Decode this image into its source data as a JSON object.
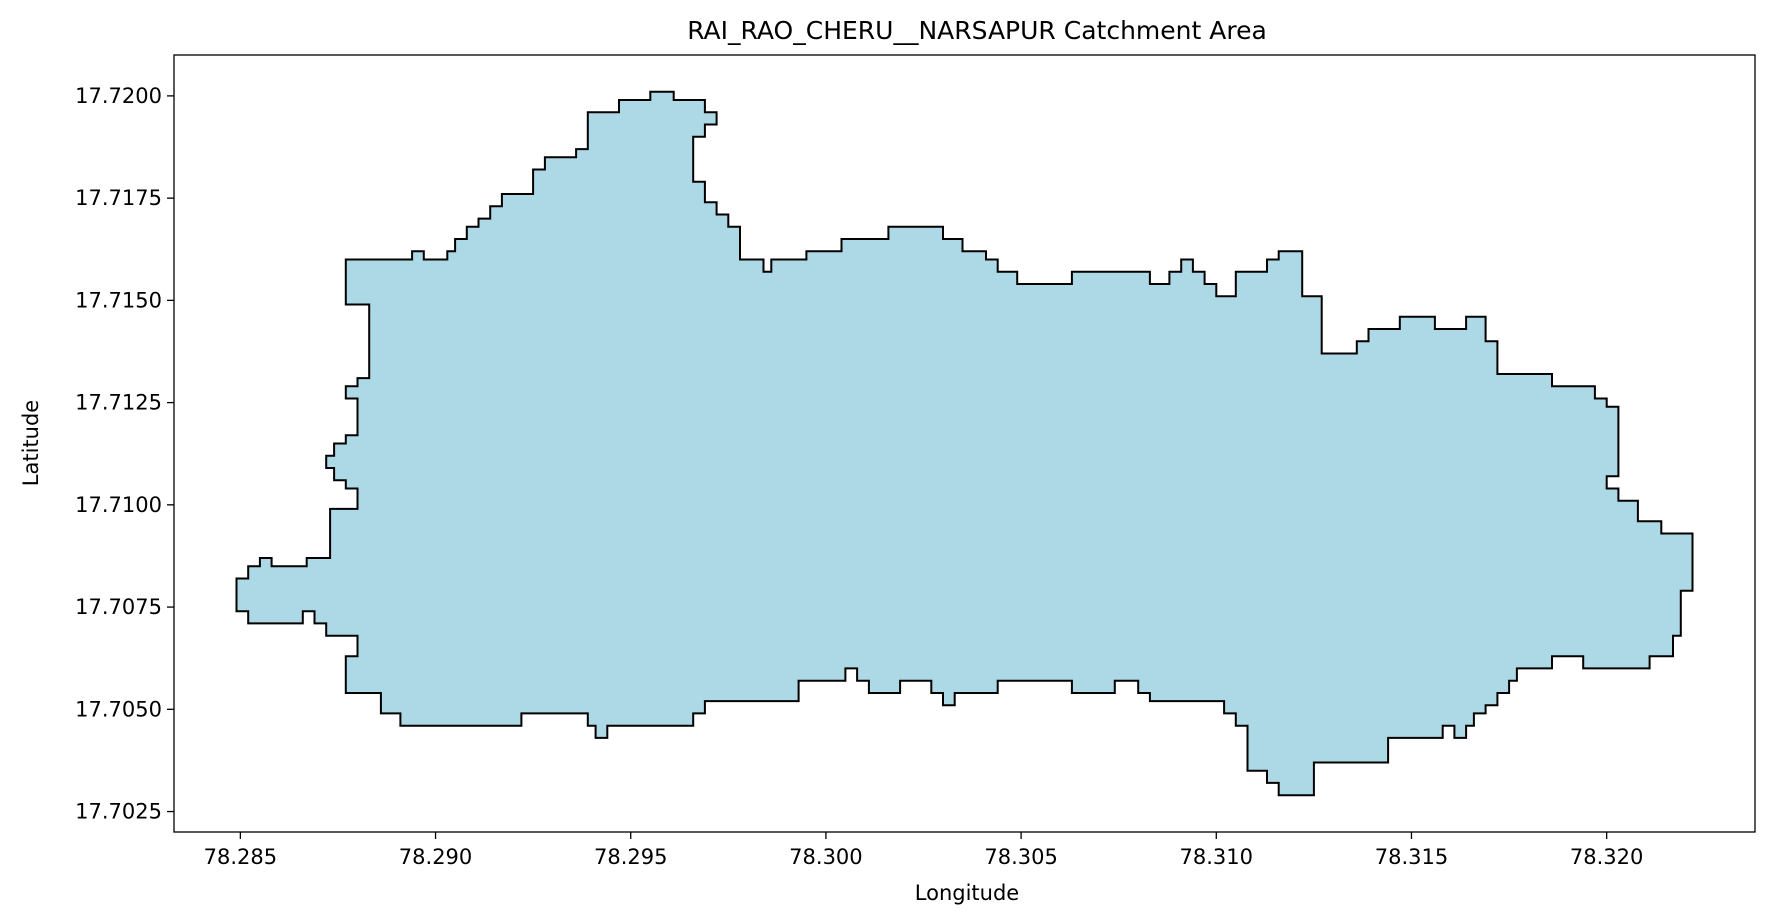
{
  "chart_data": {
    "type": "area",
    "title": "RAI_RAO_CHERU__NARSAPUR Catchment Area",
    "xlabel": "Longitude",
    "ylabel": "Latitude",
    "xlim": [
      78.2833,
      78.3238
    ],
    "ylim": [
      17.702,
      17.721
    ],
    "x_ticks": [
      78.285,
      78.29,
      78.295,
      78.3,
      78.305,
      78.31,
      78.315,
      78.32
    ],
    "x_tick_labels": [
      "78.285",
      "78.290",
      "78.295",
      "78.300",
      "78.305",
      "78.310",
      "78.315",
      "78.320"
    ],
    "y_ticks": [
      17.7025,
      17.705,
      17.7075,
      17.71,
      17.7125,
      17.715,
      17.7175,
      17.72
    ],
    "y_tick_labels": [
      "17.7025",
      "17.7050",
      "17.7075",
      "17.7100",
      "17.7125",
      "17.7150",
      "17.7175",
      "17.7200"
    ],
    "grid": false,
    "fill_color": "#add8e6",
    "edge_color": "#000000",
    "polygon": [
      [
        78.2849,
        17.7074
      ],
      [
        78.2849,
        17.7082
      ],
      [
        78.2852,
        17.7082
      ],
      [
        78.2852,
        17.7085
      ],
      [
        78.2855,
        17.7085
      ],
      [
        78.2855,
        17.7087
      ],
      [
        78.2858,
        17.7087
      ],
      [
        78.2858,
        17.7085
      ],
      [
        78.2867,
        17.7085
      ],
      [
        78.2867,
        17.7087
      ],
      [
        78.2873,
        17.7087
      ],
      [
        78.2873,
        17.7099
      ],
      [
        78.288,
        17.7099
      ],
      [
        78.288,
        17.7104
      ],
      [
        78.2877,
        17.7104
      ],
      [
        78.2877,
        17.7106
      ],
      [
        78.2874,
        17.7106
      ],
      [
        78.2874,
        17.7109
      ],
      [
        78.2872,
        17.7109
      ],
      [
        78.2872,
        17.7112
      ],
      [
        78.2874,
        17.7112
      ],
      [
        78.2874,
        17.7115
      ],
      [
        78.2877,
        17.7115
      ],
      [
        78.2877,
        17.7117
      ],
      [
        78.288,
        17.7117
      ],
      [
        78.288,
        17.7126
      ],
      [
        78.2877,
        17.7126
      ],
      [
        78.2877,
        17.7129
      ],
      [
        78.288,
        17.7129
      ],
      [
        78.288,
        17.7131
      ],
      [
        78.2883,
        17.7131
      ],
      [
        78.2883,
        17.7149
      ],
      [
        78.2877,
        17.7149
      ],
      [
        78.2877,
        17.716
      ],
      [
        78.2894,
        17.716
      ],
      [
        78.2894,
        17.7162
      ],
      [
        78.2897,
        17.7162
      ],
      [
        78.2897,
        17.716
      ],
      [
        78.2903,
        17.716
      ],
      [
        78.2903,
        17.7162
      ],
      [
        78.2905,
        17.7162
      ],
      [
        78.2905,
        17.7165
      ],
      [
        78.2908,
        17.7165
      ],
      [
        78.2908,
        17.7168
      ],
      [
        78.2911,
        17.7168
      ],
      [
        78.2911,
        17.717
      ],
      [
        78.2914,
        17.717
      ],
      [
        78.2914,
        17.7173
      ],
      [
        78.2917,
        17.7173
      ],
      [
        78.2917,
        17.7176
      ],
      [
        78.2925,
        17.7176
      ],
      [
        78.2925,
        17.7182
      ],
      [
        78.2928,
        17.7182
      ],
      [
        78.2928,
        17.7185
      ],
      [
        78.2936,
        17.7185
      ],
      [
        78.2936,
        17.7187
      ],
      [
        78.2939,
        17.7187
      ],
      [
        78.2939,
        17.7196
      ],
      [
        78.2947,
        17.7196
      ],
      [
        78.2947,
        17.7199
      ],
      [
        78.2955,
        17.7199
      ],
      [
        78.2955,
        17.7201
      ],
      [
        78.2961,
        17.7201
      ],
      [
        78.2961,
        17.7199
      ],
      [
        78.2969,
        17.7199
      ],
      [
        78.2969,
        17.7196
      ],
      [
        78.2972,
        17.7196
      ],
      [
        78.2972,
        17.7193
      ],
      [
        78.2969,
        17.7193
      ],
      [
        78.2969,
        17.719
      ],
      [
        78.2966,
        17.719
      ],
      [
        78.2966,
        17.7179
      ],
      [
        78.2969,
        17.7179
      ],
      [
        78.2969,
        17.7174
      ],
      [
        78.2972,
        17.7174
      ],
      [
        78.2972,
        17.7171
      ],
      [
        78.2975,
        17.7171
      ],
      [
        78.2975,
        17.7168
      ],
      [
        78.2978,
        17.7168
      ],
      [
        78.2978,
        17.716
      ],
      [
        78.2984,
        17.716
      ],
      [
        78.2984,
        17.7157
      ],
      [
        78.2986,
        17.7157
      ],
      [
        78.2986,
        17.716
      ],
      [
        78.2995,
        17.716
      ],
      [
        78.2995,
        17.7162
      ],
      [
        78.3004,
        17.7162
      ],
      [
        78.3004,
        17.7165
      ],
      [
        78.3016,
        17.7165
      ],
      [
        78.3016,
        17.7168
      ],
      [
        78.303,
        17.7168
      ],
      [
        78.303,
        17.7165
      ],
      [
        78.3035,
        17.7165
      ],
      [
        78.3035,
        17.7162
      ],
      [
        78.3041,
        17.7162
      ],
      [
        78.3041,
        17.716
      ],
      [
        78.3044,
        17.716
      ],
      [
        78.3044,
        17.7157
      ],
      [
        78.3049,
        17.7157
      ],
      [
        78.3049,
        17.7154
      ],
      [
        78.3063,
        17.7154
      ],
      [
        78.3063,
        17.7157
      ],
      [
        78.3083,
        17.7157
      ],
      [
        78.3083,
        17.7154
      ],
      [
        78.3088,
        17.7154
      ],
      [
        78.3088,
        17.7157
      ],
      [
        78.3091,
        17.7157
      ],
      [
        78.3091,
        17.716
      ],
      [
        78.3094,
        17.716
      ],
      [
        78.3094,
        17.7157
      ],
      [
        78.3097,
        17.7157
      ],
      [
        78.3097,
        17.7154
      ],
      [
        78.31,
        17.7154
      ],
      [
        78.31,
        17.7151
      ],
      [
        78.3105,
        17.7151
      ],
      [
        78.3105,
        17.7157
      ],
      [
        78.3113,
        17.7157
      ],
      [
        78.3113,
        17.716
      ],
      [
        78.3116,
        17.716
      ],
      [
        78.3116,
        17.7162
      ],
      [
        78.3122,
        17.7162
      ],
      [
        78.3122,
        17.7151
      ],
      [
        78.3127,
        17.7151
      ],
      [
        78.3127,
        17.7137
      ],
      [
        78.3136,
        17.7137
      ],
      [
        78.3136,
        17.714
      ],
      [
        78.3139,
        17.714
      ],
      [
        78.3139,
        17.7143
      ],
      [
        78.3147,
        17.7143
      ],
      [
        78.3147,
        17.7146
      ],
      [
        78.3156,
        17.7146
      ],
      [
        78.3156,
        17.7143
      ],
      [
        78.3164,
        17.7143
      ],
      [
        78.3164,
        17.7146
      ],
      [
        78.3169,
        17.7146
      ],
      [
        78.3169,
        17.714
      ],
      [
        78.3172,
        17.714
      ],
      [
        78.3172,
        17.7132
      ],
      [
        78.3186,
        17.7132
      ],
      [
        78.3186,
        17.7129
      ],
      [
        78.3197,
        17.7129
      ],
      [
        78.3197,
        17.7126
      ],
      [
        78.32,
        17.7126
      ],
      [
        78.32,
        17.7124
      ],
      [
        78.3203,
        17.7124
      ],
      [
        78.3203,
        17.7107
      ],
      [
        78.32,
        17.7107
      ],
      [
        78.32,
        17.7104
      ],
      [
        78.3203,
        17.7104
      ],
      [
        78.3203,
        17.7101
      ],
      [
        78.3208,
        17.7101
      ],
      [
        78.3208,
        17.7096
      ],
      [
        78.3214,
        17.7096
      ],
      [
        78.3214,
        17.7093
      ],
      [
        78.3222,
        17.7093
      ],
      [
        78.3222,
        17.7079
      ],
      [
        78.3219,
        17.7079
      ],
      [
        78.3219,
        17.7068
      ],
      [
        78.3217,
        17.7068
      ],
      [
        78.3217,
        17.7063
      ],
      [
        78.3211,
        17.7063
      ],
      [
        78.3211,
        17.706
      ],
      [
        78.3194,
        17.706
      ],
      [
        78.3194,
        17.7063
      ],
      [
        78.3186,
        17.7063
      ],
      [
        78.3186,
        17.706
      ],
      [
        78.3177,
        17.706
      ],
      [
        78.3177,
        17.7057
      ],
      [
        78.3175,
        17.7057
      ],
      [
        78.3175,
        17.7054
      ],
      [
        78.3172,
        17.7054
      ],
      [
        78.3172,
        17.7051
      ],
      [
        78.3169,
        17.7051
      ],
      [
        78.3169,
        17.7049
      ],
      [
        78.3166,
        17.7049
      ],
      [
        78.3166,
        17.7046
      ],
      [
        78.3164,
        17.7046
      ],
      [
        78.3164,
        17.7043
      ],
      [
        78.3161,
        17.7043
      ],
      [
        78.3161,
        17.7046
      ],
      [
        78.3158,
        17.7046
      ],
      [
        78.3158,
        17.7043
      ],
      [
        78.3155,
        17.7043
      ],
      [
        78.3155,
        17.7043
      ],
      [
        78.3144,
        17.7043
      ],
      [
        78.3144,
        17.7037
      ],
      [
        78.3125,
        17.7037
      ],
      [
        78.3125,
        17.7029
      ],
      [
        78.3116,
        17.7029
      ],
      [
        78.3116,
        17.7032
      ],
      [
        78.3113,
        17.7032
      ],
      [
        78.3113,
        17.7035
      ],
      [
        78.3108,
        17.7035
      ],
      [
        78.3108,
        17.7046
      ],
      [
        78.3105,
        17.7046
      ],
      [
        78.3105,
        17.7049
      ],
      [
        78.3102,
        17.7049
      ],
      [
        78.3102,
        17.7052
      ],
      [
        78.3083,
        17.7052
      ],
      [
        78.3083,
        17.7054
      ],
      [
        78.308,
        17.7054
      ],
      [
        78.308,
        17.7057
      ],
      [
        78.3074,
        17.7057
      ],
      [
        78.3074,
        17.7054
      ],
      [
        78.3063,
        17.7054
      ],
      [
        78.3063,
        17.7057
      ],
      [
        78.3044,
        17.7057
      ],
      [
        78.3044,
        17.7054
      ],
      [
        78.3033,
        17.7054
      ],
      [
        78.3033,
        17.7051
      ],
      [
        78.303,
        17.7051
      ],
      [
        78.303,
        17.7054
      ],
      [
        78.3027,
        17.7054
      ],
      [
        78.3027,
        17.7057
      ],
      [
        78.3019,
        17.7057
      ],
      [
        78.3019,
        17.7054
      ],
      [
        78.3011,
        17.7054
      ],
      [
        78.3011,
        17.7057
      ],
      [
        78.3008,
        17.7057
      ],
      [
        78.3008,
        17.706
      ],
      [
        78.3005,
        17.706
      ],
      [
        78.3005,
        17.7057
      ],
      [
        78.2993,
        17.7057
      ],
      [
        78.2993,
        17.7052
      ],
      [
        78.2969,
        17.7052
      ],
      [
        78.2969,
        17.7049
      ],
      [
        78.2966,
        17.7049
      ],
      [
        78.2966,
        17.7046
      ],
      [
        78.2944,
        17.7046
      ],
      [
        78.2944,
        17.7043
      ],
      [
        78.2941,
        17.7043
      ],
      [
        78.2941,
        17.7046
      ],
      [
        78.2939,
        17.7046
      ],
      [
        78.2939,
        17.7049
      ],
      [
        78.2922,
        17.7049
      ],
      [
        78.2922,
        17.7046
      ],
      [
        78.2891,
        17.7046
      ],
      [
        78.2891,
        17.7049
      ],
      [
        78.2886,
        17.7049
      ],
      [
        78.2886,
        17.7054
      ],
      [
        78.2877,
        17.7054
      ],
      [
        78.2877,
        17.7063
      ],
      [
        78.288,
        17.7063
      ],
      [
        78.288,
        17.7068
      ],
      [
        78.2872,
        17.7068
      ],
      [
        78.2872,
        17.7071
      ],
      [
        78.2869,
        17.7071
      ],
      [
        78.2869,
        17.7074
      ],
      [
        78.2866,
        17.7074
      ],
      [
        78.2866,
        17.7071
      ],
      [
        78.2852,
        17.7071
      ],
      [
        78.2852,
        17.7074
      ]
    ]
  }
}
